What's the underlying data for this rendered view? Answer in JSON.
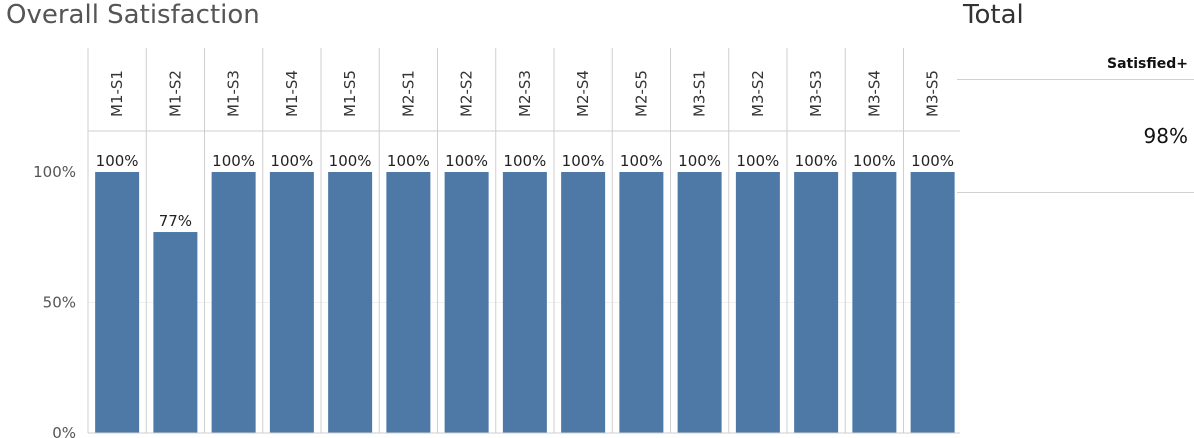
{
  "title": "Overall Satisfaction",
  "total": {
    "title": "Total",
    "measure_label": "Satisfied+",
    "value": "98%"
  },
  "colors": {
    "bar": "#4e79a7",
    "grid": "#cfcfcf"
  },
  "chart_data": {
    "type": "bar",
    "categories": [
      "M1-S1",
      "M1-S2",
      "M1-S3",
      "M1-S4",
      "M1-S5",
      "M2-S1",
      "M2-S2",
      "M2-S3",
      "M2-S4",
      "M2-S5",
      "M3-S1",
      "M3-S2",
      "M3-S3",
      "M3-S4",
      "M3-S5"
    ],
    "values": [
      100,
      77,
      100,
      100,
      100,
      100,
      100,
      100,
      100,
      100,
      100,
      100,
      100,
      100,
      100
    ],
    "data_labels": [
      "100%",
      "77%",
      "100%",
      "100%",
      "100%",
      "100%",
      "100%",
      "100%",
      "100%",
      "100%",
      "100%",
      "100%",
      "100%",
      "100%",
      "100%"
    ],
    "yticks": [
      "0%",
      "50%",
      "100%"
    ],
    "ytick_values": [
      0,
      50,
      100
    ],
    "ylim": [
      0,
      100
    ],
    "grid": true,
    "legend": "none"
  }
}
